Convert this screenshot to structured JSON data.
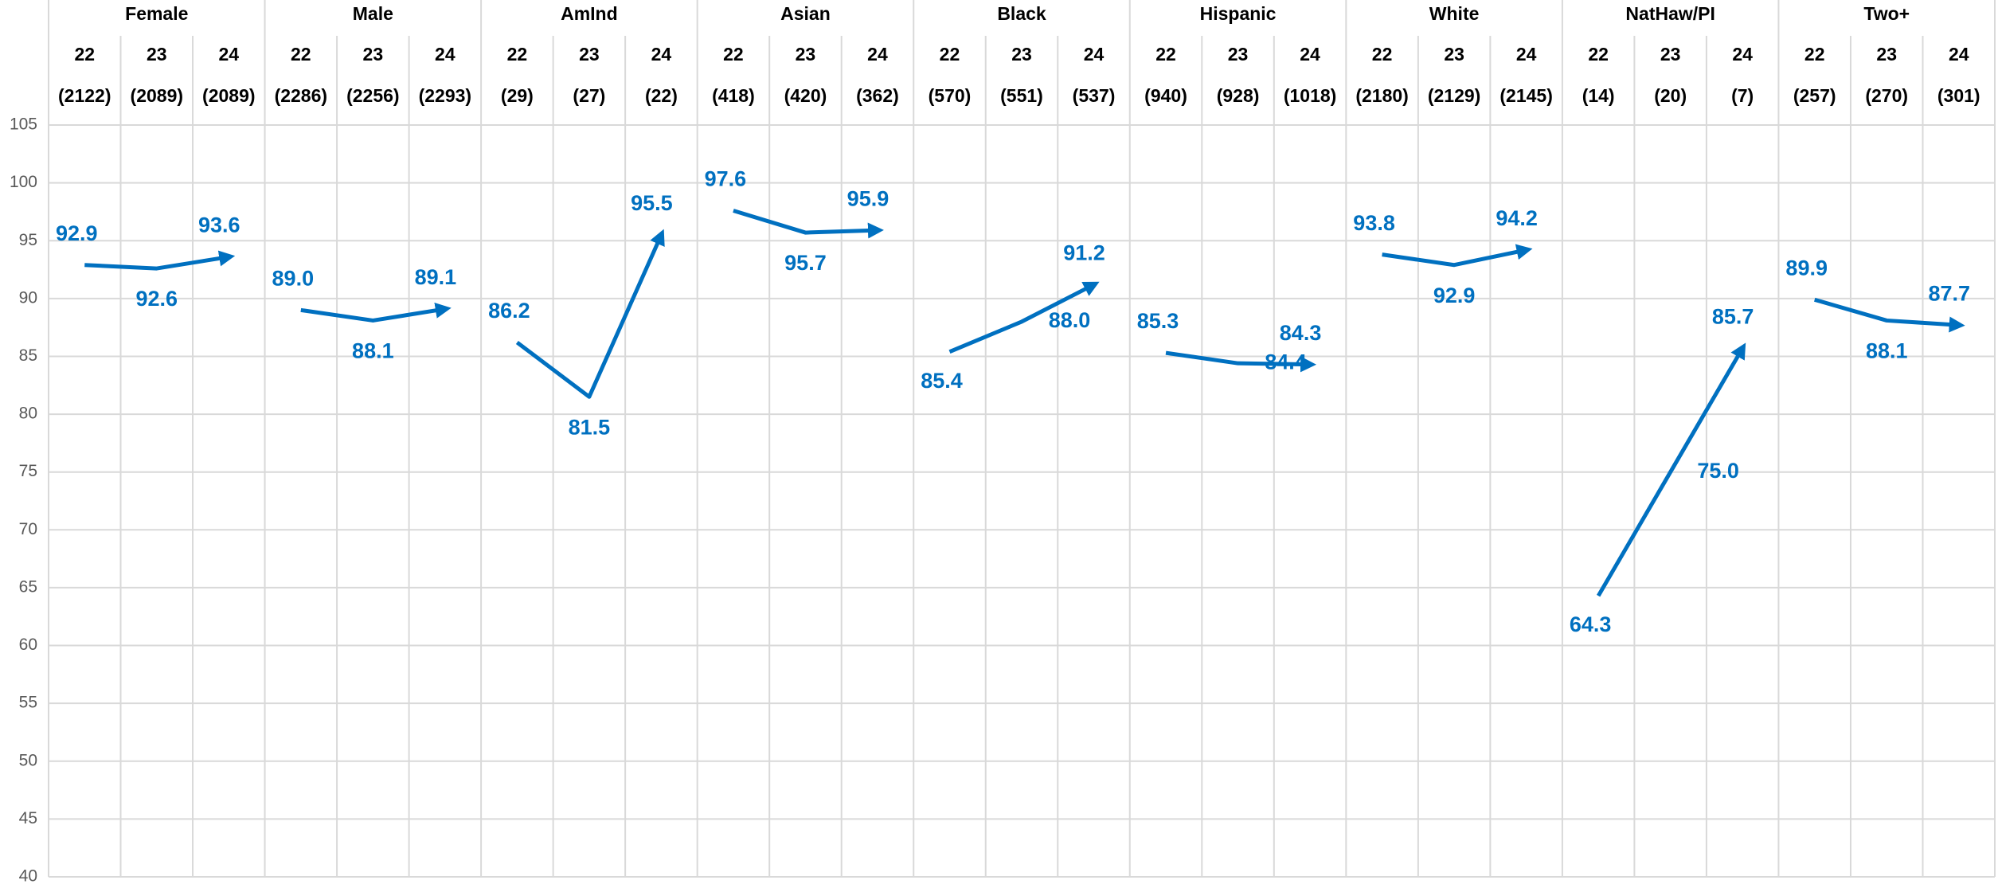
{
  "chart_data": {
    "type": "line",
    "color": "#0070c0",
    "ylim": [
      40,
      105
    ],
    "yticks": [
      40,
      45,
      50,
      55,
      60,
      65,
      70,
      75,
      80,
      85,
      90,
      95,
      100,
      105
    ],
    "grid": true,
    "groups": [
      {
        "name": "Female",
        "categories": [
          "22",
          "23",
          "24"
        ],
        "counts": [
          "(2122)",
          "(2089)",
          "(2089)"
        ],
        "values": [
          92.9,
          92.6,
          93.6
        ],
        "value_labels": [
          "92.9",
          "92.6",
          "93.6"
        ]
      },
      {
        "name": "Male",
        "categories": [
          "22",
          "23",
          "24"
        ],
        "counts": [
          "(2286)",
          "(2256)",
          "(2293)"
        ],
        "values": [
          89.0,
          88.1,
          89.1
        ],
        "value_labels": [
          "89.0",
          "88.1",
          "89.1"
        ]
      },
      {
        "name": "AmInd",
        "categories": [
          "22",
          "23",
          "24"
        ],
        "counts": [
          "(29)",
          "(27)",
          "(22)"
        ],
        "values": [
          86.2,
          81.5,
          95.5
        ],
        "value_labels": [
          "86.2",
          "81.5",
          "95.5"
        ]
      },
      {
        "name": "Asian",
        "categories": [
          "22",
          "23",
          "24"
        ],
        "counts": [
          "(418)",
          "(420)",
          "(362)"
        ],
        "values": [
          97.6,
          95.7,
          95.9
        ],
        "value_labels": [
          "97.6",
          "95.7",
          "95.9"
        ]
      },
      {
        "name": "Black",
        "categories": [
          "22",
          "23",
          "24"
        ],
        "counts": [
          "(570)",
          "(551)",
          "(537)"
        ],
        "values": [
          85.4,
          88.0,
          91.2
        ],
        "value_labels": [
          "85.4",
          "88.0",
          "91.2"
        ]
      },
      {
        "name": "Hispanic",
        "categories": [
          "22",
          "23",
          "24"
        ],
        "counts": [
          "(940)",
          "(928)",
          "(1018)"
        ],
        "values": [
          85.3,
          84.4,
          84.3
        ],
        "value_labels": [
          "85.3",
          "84.4",
          "84.3"
        ]
      },
      {
        "name": "White",
        "categories": [
          "22",
          "23",
          "24"
        ],
        "counts": [
          "(2180)",
          "(2129)",
          "(2145)"
        ],
        "values": [
          93.8,
          92.9,
          94.2
        ],
        "value_labels": [
          "93.8",
          "92.9",
          "94.2"
        ]
      },
      {
        "name": "NatHaw/PI",
        "categories": [
          "22",
          "23",
          "24"
        ],
        "counts": [
          "(14)",
          "(20)",
          "(7)"
        ],
        "values": [
          64.3,
          75.0,
          85.7
        ],
        "value_labels": [
          "64.3",
          "75.0",
          "85.7"
        ]
      },
      {
        "name": "Two+",
        "categories": [
          "22",
          "23",
          "24"
        ],
        "counts": [
          "(257)",
          "(270)",
          "(301)"
        ],
        "values": [
          89.9,
          88.1,
          87.7
        ],
        "value_labels": [
          "89.9",
          "88.1",
          "87.7"
        ]
      }
    ]
  }
}
